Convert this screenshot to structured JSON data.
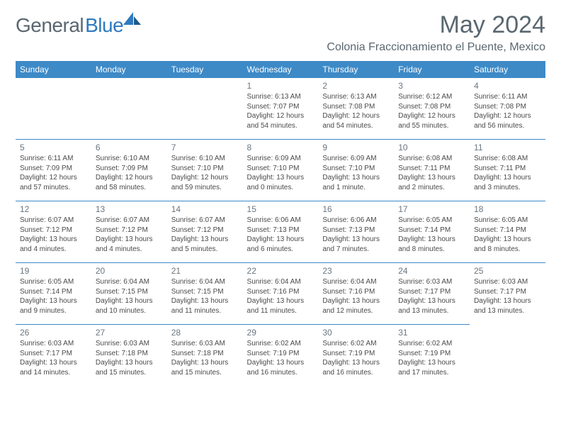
{
  "brand": {
    "part1": "General",
    "part2": "Blue"
  },
  "title": "May 2024",
  "location": "Colonia Fraccionamiento el Puente, Mexico",
  "colors": {
    "header_bg": "#3d8ac7",
    "header_text": "#ffffff",
    "divider": "#3d8ac7",
    "daynum": "#6a7680",
    "body_text": "#4a4a4a",
    "logo_grey": "#5a6770",
    "logo_blue": "#2f7abf",
    "page_bg": "#ffffff"
  },
  "typography": {
    "title_fontsize": 34,
    "location_fontsize": 16,
    "header_fontsize": 12,
    "cell_fontsize": 10,
    "daynum_fontsize": 12
  },
  "weekdays": [
    "Sunday",
    "Monday",
    "Tuesday",
    "Wednesday",
    "Thursday",
    "Friday",
    "Saturday"
  ],
  "start_weekday_index": 3,
  "days": [
    {
      "n": "1",
      "sunrise": "Sunrise: 6:13 AM",
      "sunset": "Sunset: 7:07 PM",
      "daylight": "Daylight: 12 hours and 54 minutes."
    },
    {
      "n": "2",
      "sunrise": "Sunrise: 6:13 AM",
      "sunset": "Sunset: 7:08 PM",
      "daylight": "Daylight: 12 hours and 54 minutes."
    },
    {
      "n": "3",
      "sunrise": "Sunrise: 6:12 AM",
      "sunset": "Sunset: 7:08 PM",
      "daylight": "Daylight: 12 hours and 55 minutes."
    },
    {
      "n": "4",
      "sunrise": "Sunrise: 6:11 AM",
      "sunset": "Sunset: 7:08 PM",
      "daylight": "Daylight: 12 hours and 56 minutes."
    },
    {
      "n": "5",
      "sunrise": "Sunrise: 6:11 AM",
      "sunset": "Sunset: 7:09 PM",
      "daylight": "Daylight: 12 hours and 57 minutes."
    },
    {
      "n": "6",
      "sunrise": "Sunrise: 6:10 AM",
      "sunset": "Sunset: 7:09 PM",
      "daylight": "Daylight: 12 hours and 58 minutes."
    },
    {
      "n": "7",
      "sunrise": "Sunrise: 6:10 AM",
      "sunset": "Sunset: 7:10 PM",
      "daylight": "Daylight: 12 hours and 59 minutes."
    },
    {
      "n": "8",
      "sunrise": "Sunrise: 6:09 AM",
      "sunset": "Sunset: 7:10 PM",
      "daylight": "Daylight: 13 hours and 0 minutes."
    },
    {
      "n": "9",
      "sunrise": "Sunrise: 6:09 AM",
      "sunset": "Sunset: 7:10 PM",
      "daylight": "Daylight: 13 hours and 1 minute."
    },
    {
      "n": "10",
      "sunrise": "Sunrise: 6:08 AM",
      "sunset": "Sunset: 7:11 PM",
      "daylight": "Daylight: 13 hours and 2 minutes."
    },
    {
      "n": "11",
      "sunrise": "Sunrise: 6:08 AM",
      "sunset": "Sunset: 7:11 PM",
      "daylight": "Daylight: 13 hours and 3 minutes."
    },
    {
      "n": "12",
      "sunrise": "Sunrise: 6:07 AM",
      "sunset": "Sunset: 7:12 PM",
      "daylight": "Daylight: 13 hours and 4 minutes."
    },
    {
      "n": "13",
      "sunrise": "Sunrise: 6:07 AM",
      "sunset": "Sunset: 7:12 PM",
      "daylight": "Daylight: 13 hours and 4 minutes."
    },
    {
      "n": "14",
      "sunrise": "Sunrise: 6:07 AM",
      "sunset": "Sunset: 7:12 PM",
      "daylight": "Daylight: 13 hours and 5 minutes."
    },
    {
      "n": "15",
      "sunrise": "Sunrise: 6:06 AM",
      "sunset": "Sunset: 7:13 PM",
      "daylight": "Daylight: 13 hours and 6 minutes."
    },
    {
      "n": "16",
      "sunrise": "Sunrise: 6:06 AM",
      "sunset": "Sunset: 7:13 PM",
      "daylight": "Daylight: 13 hours and 7 minutes."
    },
    {
      "n": "17",
      "sunrise": "Sunrise: 6:05 AM",
      "sunset": "Sunset: 7:14 PM",
      "daylight": "Daylight: 13 hours and 8 minutes."
    },
    {
      "n": "18",
      "sunrise": "Sunrise: 6:05 AM",
      "sunset": "Sunset: 7:14 PM",
      "daylight": "Daylight: 13 hours and 8 minutes."
    },
    {
      "n": "19",
      "sunrise": "Sunrise: 6:05 AM",
      "sunset": "Sunset: 7:14 PM",
      "daylight": "Daylight: 13 hours and 9 minutes."
    },
    {
      "n": "20",
      "sunrise": "Sunrise: 6:04 AM",
      "sunset": "Sunset: 7:15 PM",
      "daylight": "Daylight: 13 hours and 10 minutes."
    },
    {
      "n": "21",
      "sunrise": "Sunrise: 6:04 AM",
      "sunset": "Sunset: 7:15 PM",
      "daylight": "Daylight: 13 hours and 11 minutes."
    },
    {
      "n": "22",
      "sunrise": "Sunrise: 6:04 AM",
      "sunset": "Sunset: 7:16 PM",
      "daylight": "Daylight: 13 hours and 11 minutes."
    },
    {
      "n": "23",
      "sunrise": "Sunrise: 6:04 AM",
      "sunset": "Sunset: 7:16 PM",
      "daylight": "Daylight: 13 hours and 12 minutes."
    },
    {
      "n": "24",
      "sunrise": "Sunrise: 6:03 AM",
      "sunset": "Sunset: 7:17 PM",
      "daylight": "Daylight: 13 hours and 13 minutes."
    },
    {
      "n": "25",
      "sunrise": "Sunrise: 6:03 AM",
      "sunset": "Sunset: 7:17 PM",
      "daylight": "Daylight: 13 hours and 13 minutes."
    },
    {
      "n": "26",
      "sunrise": "Sunrise: 6:03 AM",
      "sunset": "Sunset: 7:17 PM",
      "daylight": "Daylight: 13 hours and 14 minutes."
    },
    {
      "n": "27",
      "sunrise": "Sunrise: 6:03 AM",
      "sunset": "Sunset: 7:18 PM",
      "daylight": "Daylight: 13 hours and 15 minutes."
    },
    {
      "n": "28",
      "sunrise": "Sunrise: 6:03 AM",
      "sunset": "Sunset: 7:18 PM",
      "daylight": "Daylight: 13 hours and 15 minutes."
    },
    {
      "n": "29",
      "sunrise": "Sunrise: 6:02 AM",
      "sunset": "Sunset: 7:19 PM",
      "daylight": "Daylight: 13 hours and 16 minutes."
    },
    {
      "n": "30",
      "sunrise": "Sunrise: 6:02 AM",
      "sunset": "Sunset: 7:19 PM",
      "daylight": "Daylight: 13 hours and 16 minutes."
    },
    {
      "n": "31",
      "sunrise": "Sunrise: 6:02 AM",
      "sunset": "Sunset: 7:19 PM",
      "daylight": "Daylight: 13 hours and 17 minutes."
    }
  ]
}
